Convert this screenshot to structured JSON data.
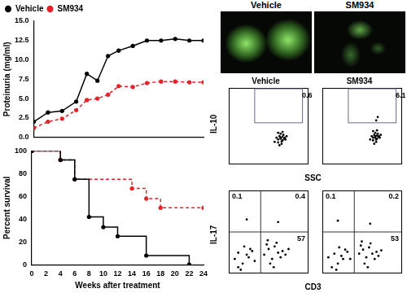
{
  "chart_data": [
    {
      "type": "line",
      "ylabel": "Proteinuria (mg/ml)",
      "x": [
        0,
        2,
        4,
        6,
        7.5,
        9,
        10.5,
        12,
        14,
        16,
        18,
        20,
        22,
        24
      ],
      "series": [
        {
          "name": "Vehicle",
          "color": "#000000",
          "marker": "circle",
          "line_style": "solid",
          "values": [
            2.0,
            3.2,
            3.4,
            4.6,
            8.2,
            7.3,
            10.5,
            11.2,
            11.8,
            12.5,
            12.5,
            12.7,
            12.5,
            12.5
          ]
        },
        {
          "name": "SM934",
          "color": "#e8202a",
          "marker": "circle",
          "line_style": "dashed",
          "values": [
            1.2,
            2.0,
            2.4,
            3.5,
            4.8,
            5.0,
            5.5,
            6.6,
            6.5,
            7.0,
            7.2,
            7.2,
            7.1,
            7.1
          ]
        }
      ],
      "xlim": [
        0,
        24
      ],
      "xticks": [
        0,
        4,
        8,
        12,
        16,
        20,
        24
      ],
      "ylim": [
        0,
        15
      ],
      "yticks": [
        {
          "value": 0,
          "label": "0.0"
        },
        {
          "value": 2.5,
          "label": "2.5"
        },
        {
          "value": 5,
          "label": "5.0"
        },
        {
          "value": 7.5,
          "label": "7.5"
        },
        {
          "value": 10,
          "label": "10.0"
        },
        {
          "value": 12.5,
          "label": "12.5"
        },
        {
          "value": 15,
          "label": "15.0"
        }
      ],
      "grid": false,
      "legend": "top-left",
      "tick_labels": "y"
    },
    {
      "type": "step",
      "xlabel": "Weeks after treatment",
      "ylabel": "Percent survival",
      "series": [
        {
          "name": "Vehicle",
          "color": "#000000",
          "marker": "circle",
          "line_style": "solid",
          "x": [
            0,
            4,
            6,
            8,
            10,
            12,
            16,
            22
          ],
          "values": [
            100,
            92,
            75,
            42,
            33,
            25,
            8,
            0
          ]
        },
        {
          "name": "SM934",
          "color": "#e8202a",
          "marker": "circle",
          "line_style": "dashed",
          "x": [
            0,
            4,
            6,
            14,
            16,
            18,
            24
          ],
          "values": [
            100,
            92,
            75,
            67,
            58,
            50,
            50
          ]
        }
      ],
      "xlim": [
        0,
        24
      ],
      "xticks": [
        0,
        2,
        4,
        6,
        8,
        10,
        12,
        14,
        16,
        18,
        20,
        22,
        24
      ],
      "ylim": [
        0,
        100
      ],
      "yticks": [
        0,
        20,
        40,
        60,
        80,
        100
      ],
      "grid": false
    }
  ],
  "images": {
    "titles": [
      "Vehicle",
      "SM934"
    ]
  },
  "flow_rows": [
    {
      "xlabel": "SSC",
      "ylabel": "IL-10",
      "panels": [
        {
          "type": "scatter",
          "title": "Vehicle",
          "log": true,
          "tick_labels": false,
          "color": "#000000",
          "xlim": [
            1,
            10000
          ],
          "ylim": [
            1,
            10000
          ],
          "x": [
            200,
            300,
            400,
            500,
            350,
            450,
            600,
            250,
            300,
            550,
            700,
            400,
            350,
            500,
            450,
            650,
            300,
            400,
            800,
            500
          ],
          "values": [
            15,
            20,
            25,
            18,
            30,
            12,
            22,
            25,
            14,
            35,
            20,
            40,
            10,
            28,
            16,
            25,
            45,
            22,
            30,
            50
          ],
          "gate": {
            "x": [
              20,
              5000
            ],
            "y": [
              150,
              9000
            ],
            "value": 0.6
          }
        },
        {
          "type": "scatter",
          "title": "SM934",
          "log": true,
          "tick_labels": false,
          "color": "#000000",
          "xlim": [
            1,
            10000
          ],
          "ylim": [
            1,
            10000
          ],
          "x": [
            250,
            350,
            450,
            550,
            400,
            500,
            650,
            300,
            350,
            600,
            750,
            450,
            400,
            550,
            500,
            700,
            350,
            450,
            850,
            550,
            500,
            600
          ],
          "values": [
            20,
            25,
            30,
            22,
            35,
            15,
            28,
            30,
            18,
            40,
            25,
            45,
            12,
            32,
            20,
            30,
            55,
            25,
            35,
            60,
            200,
            300
          ],
          "gate": {
            "x": [
              20,
              5000
            ],
            "y": [
              150,
              9000
            ],
            "value": 6.1
          }
        }
      ]
    },
    {
      "xlabel": "CD3",
      "ylabel": "IL-17",
      "panels": [
        {
          "type": "scatter",
          "log": true,
          "tick_labels": false,
          "color": "#000000",
          "xlim": [
            1,
            10000
          ],
          "ylim": [
            1,
            10000
          ],
          "x": [
            2,
            3,
            5,
            8,
            12,
            20,
            3,
            6,
            10,
            15,
            60,
            100,
            150,
            200,
            300,
            400,
            80,
            120,
            250,
            500,
            700,
            180,
            90,
            1000,
            4,
            300,
            8
          ],
          "values": [
            5,
            10,
            3,
            8,
            15,
            4,
            2,
            20,
            6,
            12,
            8,
            15,
            5,
            20,
            10,
            6,
            25,
            3,
            30,
            12,
            8,
            2,
            40,
            15,
            1.5,
            300,
            400
          ],
          "quadrant": {
            "x": 40,
            "y": 100,
            "upper_left": 0.1,
            "upper_right": 0.4,
            "lower_right": 57
          }
        },
        {
          "type": "scatter",
          "log": true,
          "tick_labels": false,
          "color": "#000000",
          "xlim": [
            1,
            10000
          ],
          "ylim": [
            1,
            10000
          ],
          "x": [
            2,
            4,
            6,
            9,
            14,
            25,
            3,
            7,
            11,
            18,
            70,
            110,
            160,
            220,
            320,
            420,
            85,
            130,
            260,
            520,
            650,
            190,
            95,
            900,
            5,
            250,
            6
          ],
          "values": [
            6,
            9,
            3,
            7,
            14,
            5,
            2,
            18,
            5,
            11,
            9,
            14,
            6,
            18,
            9,
            5,
            22,
            3,
            28,
            11,
            7,
            2,
            35,
            13,
            1.5,
            250,
            350
          ],
          "quadrant": {
            "x": 40,
            "y": 100,
            "upper_left": 0.1,
            "upper_right": 0.2,
            "lower_right": 53
          }
        }
      ]
    }
  ]
}
